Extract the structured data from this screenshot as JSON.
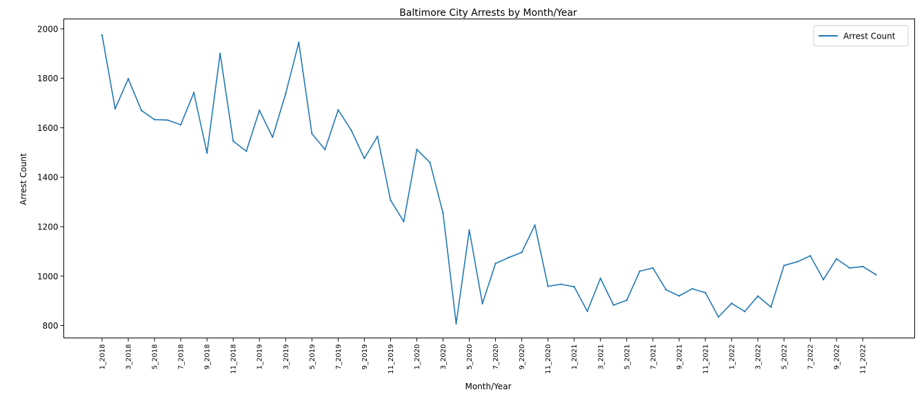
{
  "chart_data": {
    "type": "line",
    "title": "Baltimore City Arrests by Month/Year",
    "xlabel": "Month/Year",
    "ylabel": "Arrest Count",
    "ylim": [
      750,
      2040
    ],
    "y_ticks": [
      800,
      1000,
      1200,
      1400,
      1600,
      1800,
      2000
    ],
    "grid": false,
    "legend_position": "top-right",
    "colors": {
      "series": "#1f77b4"
    },
    "x_tick_labels": [
      "1_2018",
      "3_2018",
      "5_2018",
      "7_2018",
      "9_2018",
      "11_2018",
      "1_2019",
      "3_2019",
      "5_2019",
      "7_2019",
      "9_2019",
      "11_2019",
      "1_2020",
      "3_2020",
      "5_2020",
      "7_2020",
      "9_2020",
      "11_2020",
      "1_2021",
      "3_2021",
      "5_2021",
      "7_2021",
      "9_2021",
      "11_2021",
      "1_2022",
      "3_2022",
      "5_2022",
      "7_2022",
      "9_2022",
      "11_2022"
    ],
    "categories": [
      "1_2018",
      "2_2018",
      "3_2018",
      "4_2018",
      "5_2018",
      "6_2018",
      "7_2018",
      "8_2018",
      "9_2018",
      "10_2018",
      "11_2018",
      "12_2018",
      "1_2019",
      "2_2019",
      "3_2019",
      "4_2019",
      "5_2019",
      "6_2019",
      "7_2019",
      "8_2019",
      "9_2019",
      "10_2019",
      "11_2019",
      "12_2019",
      "1_2020",
      "2_2020",
      "3_2020",
      "4_2020",
      "5_2020",
      "6_2020",
      "7_2020",
      "8_2020",
      "9_2020",
      "10_2020",
      "11_2020",
      "12_2020",
      "1_2021",
      "2_2021",
      "3_2021",
      "4_2021",
      "5_2021",
      "6_2021",
      "7_2021",
      "8_2021",
      "9_2021",
      "10_2021",
      "11_2021",
      "12_2021",
      "1_2022",
      "2_2022",
      "3_2022",
      "4_2022",
      "5_2022",
      "6_2022",
      "7_2022",
      "8_2022",
      "9_2022",
      "10_2022",
      "11_2022",
      "12_2022"
    ],
    "series": [
      {
        "name": "Arrest Count",
        "values": [
          1975,
          1677,
          1798,
          1670,
          1633,
          1631,
          1612,
          1742,
          1498,
          1900,
          1546,
          1505,
          1670,
          1562,
          1738,
          1945,
          1576,
          1512,
          1672,
          1590,
          1476,
          1565,
          1307,
          1221,
          1512,
          1460,
          1255,
          808,
          1186,
          889,
          1051,
          1075,
          1096,
          1206,
          959,
          967,
          957,
          858,
          991,
          883,
          902,
          1020,
          1033,
          945,
          920,
          949,
          933,
          835,
          890,
          857,
          919,
          875,
          1043,
          1058,
          1082,
          986,
          1070,
          1033,
          1039,
          1006
        ]
      }
    ]
  }
}
